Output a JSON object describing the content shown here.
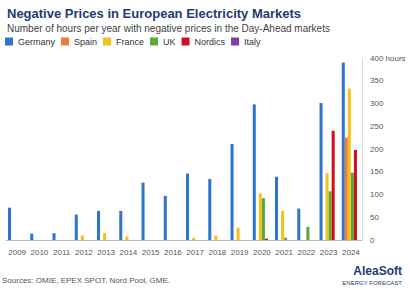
{
  "chart_data": {
    "type": "bar",
    "title": "Negative Prices in European Electricity Markets",
    "subtitle": "Number of hours per year with negative prices in the Day-Ahead markets",
    "source": "Sources: OMIE, EPEX SPOT, Nord Pool, GME.",
    "logo_text": "AleaSoft",
    "logo_subtext": "ENERGY FORECAST",
    "categories": [
      "2009",
      "2010",
      "2011",
      "2012",
      "2013",
      "2014",
      "2015",
      "2016",
      "2017",
      "2018",
      "2019",
      "2020",
      "2021",
      "2022",
      "2023",
      "2024"
    ],
    "series": [
      {
        "name": "Germany",
        "color": "#2f75c8",
        "values": [
          71,
          14,
          15,
          56,
          64,
          64,
          126,
          97,
          146,
          134,
          211,
          298,
          139,
          69,
          301,
          390
        ]
      },
      {
        "name": "Spain",
        "color": "#f07c3c",
        "values": [
          0,
          0,
          0,
          0,
          0,
          0,
          0,
          0,
          0,
          0,
          0,
          0,
          0,
          0,
          0,
          225
        ]
      },
      {
        "name": "France",
        "color": "#f5c21b",
        "values": [
          0,
          0,
          0,
          10,
          15,
          8,
          0,
          0,
          5,
          10,
          27,
          102,
          64,
          0,
          147,
          333
        ]
      },
      {
        "name": "UK",
        "color": "#5aaa3c",
        "values": [
          0,
          0,
          0,
          0,
          0,
          0,
          0,
          0,
          0,
          0,
          0,
          92,
          5,
          29,
          107,
          148
        ]
      },
      {
        "name": "Nordics",
        "color": "#d0101e",
        "values": [
          0,
          0,
          0,
          0,
          0,
          0,
          0,
          0,
          0,
          0,
          0,
          3,
          0,
          0,
          240,
          198
        ]
      },
      {
        "name": "Italy",
        "color": "#7a3fa8",
        "values": [
          0,
          0,
          0,
          0,
          0,
          0,
          0,
          0,
          0,
          0,
          0,
          0,
          0,
          0,
          0,
          0
        ]
      }
    ],
    "ylim": [
      0,
      400
    ],
    "yticks": [
      0,
      50,
      100,
      150,
      200,
      250,
      300,
      350,
      {
        "value": 400,
        "label": "400 hours"
      }
    ],
    "grid": false,
    "legend": "top-left"
  }
}
